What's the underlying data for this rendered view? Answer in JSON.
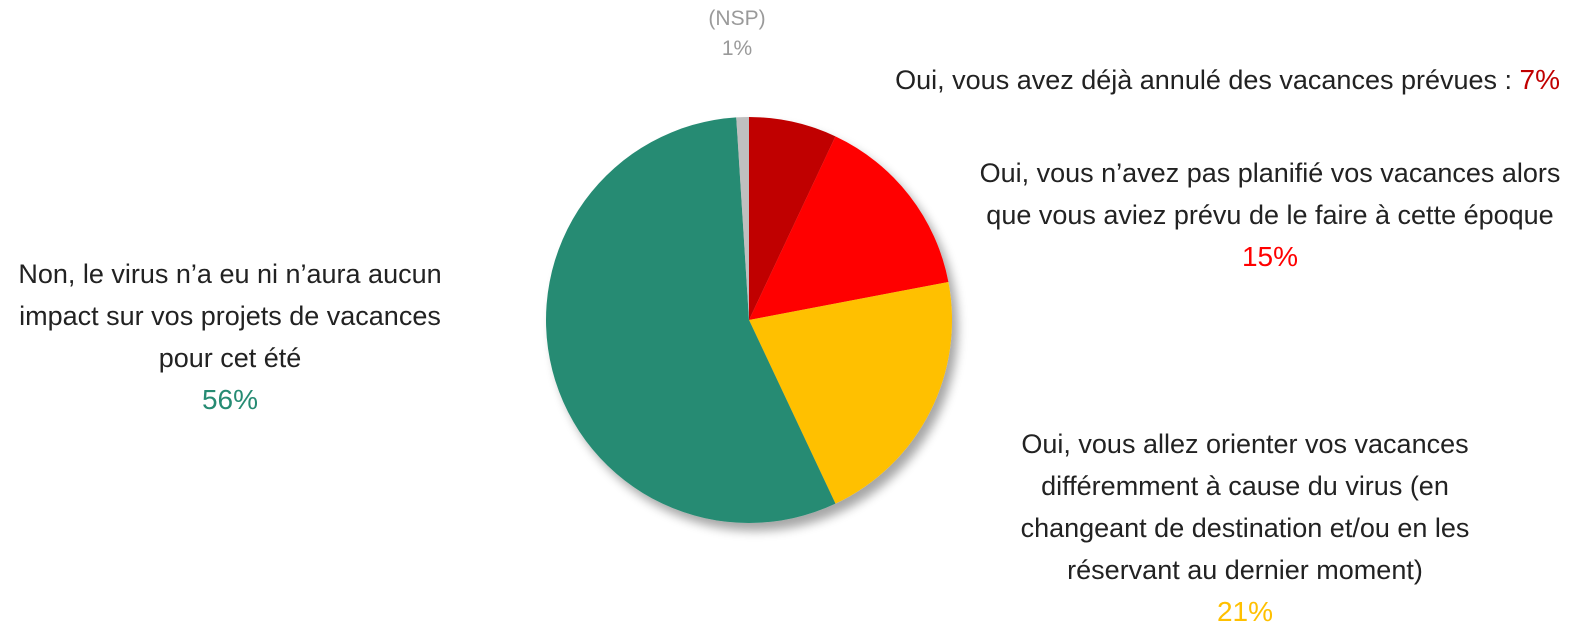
{
  "chart_data": {
    "type": "pie",
    "categories": [
      "Oui, vous avez déjà annulé des vacances prévues :",
      "Oui, vous n’avez pas planifié vos vacances alors que vous aviez prévu de le faire à cette époque",
      "Oui, vous allez orienter vos vacances différemment à cause du virus (en changeant de destination et/ou en les réservant au dernier moment)",
      "Non, le virus n’a eu ni n’aura aucun impact sur vos projets de vacances pour cet été",
      "(NSP)"
    ],
    "values": [
      7,
      15,
      21,
      56,
      1
    ],
    "value_labels": [
      "7%",
      "15%",
      "21%",
      "56%",
      "1%"
    ],
    "colors": [
      "#C00000",
      "#FF0000",
      "#FFC000",
      "#268B73",
      "#BFBFBF"
    ]
  }
}
